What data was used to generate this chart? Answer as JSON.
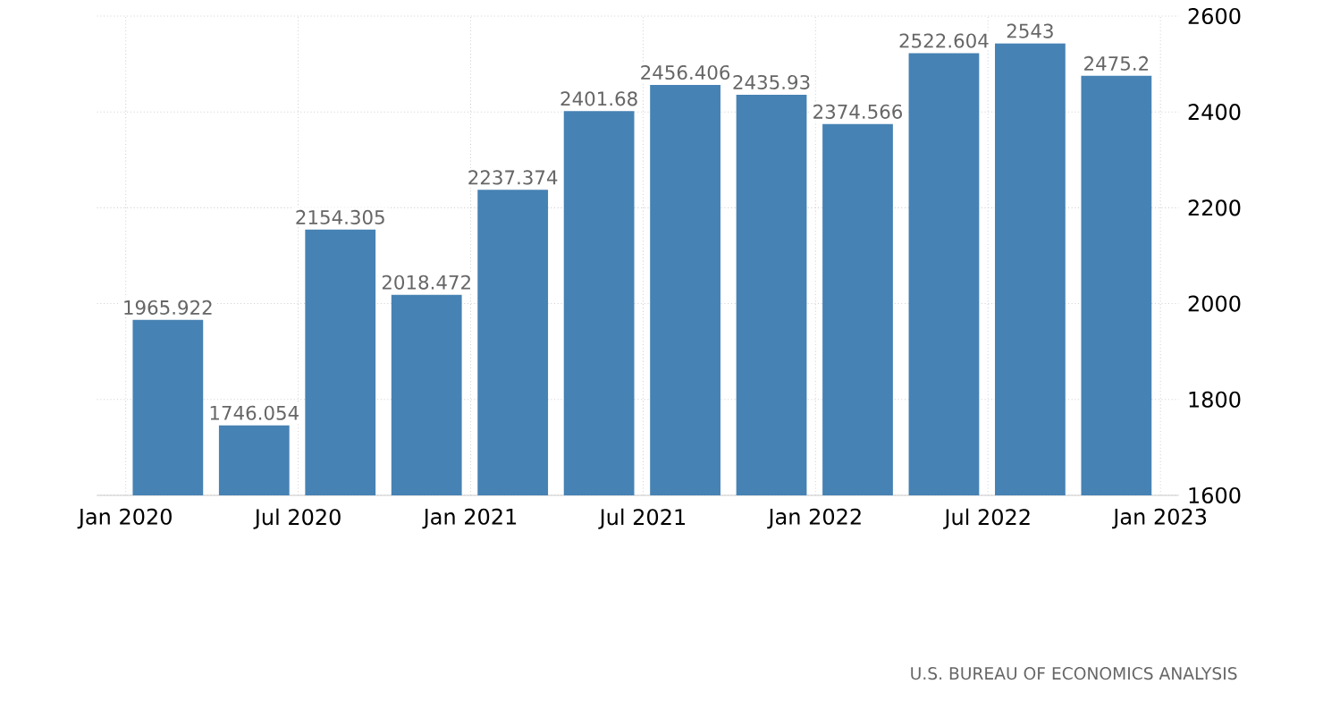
{
  "chart_data": {
    "type": "bar",
    "x": [
      "2020-02-15",
      "2020-05-15",
      "2020-08-15",
      "2020-11-15",
      "2021-02-15",
      "2021-05-15",
      "2021-08-15",
      "2021-11-15",
      "2022-02-15",
      "2022-05-15",
      "2022-08-15",
      "2022-11-15"
    ],
    "values": [
      1965.922,
      1746.054,
      2154.305,
      2018.472,
      2237.374,
      2401.68,
      2456.406,
      2435.93,
      2374.566,
      2522.604,
      2543,
      2475.2
    ],
    "color": "#4682b4",
    "data_labels": true,
    "xlim": [
      "2019-12-01",
      "2023-01-20"
    ],
    "xticks": [
      {
        "value": "2020-01-01",
        "label": "Jan 2020"
      },
      {
        "value": "2020-07-01",
        "label": "Jul 2020"
      },
      {
        "value": "2021-01-01",
        "label": "Jan 2021"
      },
      {
        "value": "2021-07-01",
        "label": "Jul 2021"
      },
      {
        "value": "2022-01-01",
        "label": "Jan 2022"
      },
      {
        "value": "2022-07-01",
        "label": "Jul 2022"
      },
      {
        "value": "2023-01-01",
        "label": "Jan 2023"
      }
    ],
    "ylim": [
      1600,
      2600
    ],
    "yticks": [
      1600,
      1800,
      2000,
      2200,
      2400,
      2600
    ],
    "grid": true,
    "annotations": [
      "U.S. BUREAU OF ECONOMICS ANALYSIS"
    ]
  }
}
